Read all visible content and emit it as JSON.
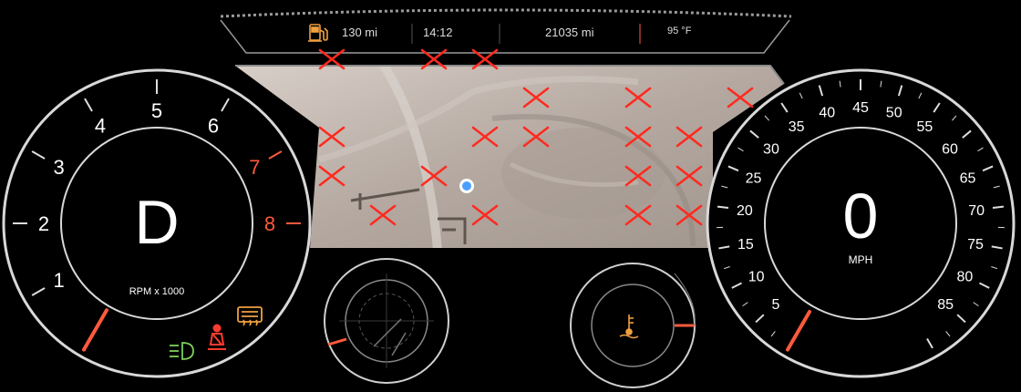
{
  "top_bar": {
    "range": "130 mi",
    "clock": "14:12",
    "odometer": "21035 mi",
    "outside_temp": "95 °F"
  },
  "tachometer": {
    "labels": [
      "1",
      "2",
      "3",
      "4",
      "5",
      "6",
      "7",
      "8"
    ],
    "redline_from": 7,
    "unit_label": "RPM x 1000",
    "gear": "D",
    "value": 0
  },
  "speedometer": {
    "labels": [
      "5",
      "10",
      "15",
      "20",
      "25",
      "30",
      "35",
      "40",
      "45",
      "50",
      "55",
      "60",
      "65",
      "70",
      "75",
      "80",
      "85"
    ],
    "speed": "0",
    "unit": "MPH"
  },
  "indicators": {
    "headlight_icon": "headlight-icon",
    "seatbelt_icon": "seatbelt-warning-icon",
    "defrost_icon": "rear-defrost-icon",
    "fuel_icon": "fuel-pump-icon",
    "coolant_icon": "coolant-temp-icon"
  },
  "colors": {
    "accent_red": "#ff5a3c",
    "marker_red": "#ff2a1f",
    "location_blue": "#4aa0ff",
    "map_sand": "#b7aca5"
  }
}
